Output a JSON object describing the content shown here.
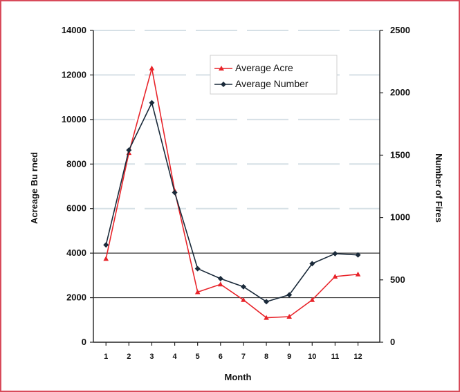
{
  "chart_data": {
    "type": "line",
    "title": "",
    "xlabel": "Month",
    "ylabel_left": "Acreage Bu rned",
    "ylabel_right": "Number of Fires",
    "categories": [
      "1",
      "2",
      "3",
      "4",
      "5",
      "6",
      "7",
      "8",
      "9",
      "10",
      "11",
      "12"
    ],
    "ylim_left": [
      0,
      14000
    ],
    "yticks_left": [
      "0",
      "2000",
      "4000",
      "6000",
      "8000",
      "10000",
      "12000",
      "14000"
    ],
    "ylim_right": [
      0,
      2500
    ],
    "yticks_right": [
      "0",
      "500",
      "1000",
      "1500",
      "2000",
      "2500"
    ],
    "legend_position": "top-right",
    "series": [
      {
        "name": "Average Acre",
        "axis": "left",
        "color": "#e8242a",
        "marker": "triangle",
        "values": [
          3750,
          8500,
          12300,
          6800,
          2250,
          2600,
          1900,
          1100,
          1150,
          1900,
          2950,
          3050
        ]
      },
      {
        "name": "Average Number",
        "axis": "right",
        "color": "#1a2a3a",
        "marker": "diamond",
        "values": [
          780,
          1540,
          1920,
          1200,
          590,
          510,
          445,
          325,
          380,
          630,
          710,
          700
        ]
      }
    ],
    "reference_lines_left": [
      2000,
      4000
    ]
  }
}
